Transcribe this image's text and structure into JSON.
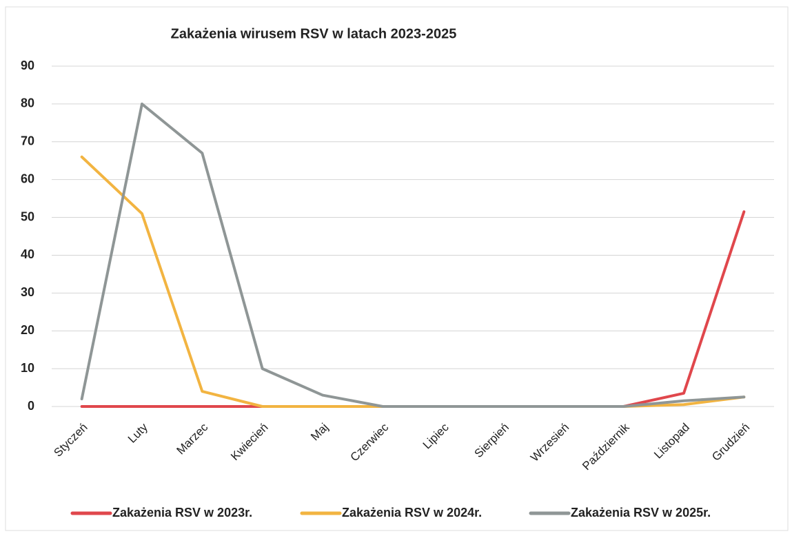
{
  "chart_data": {
    "type": "line",
    "title": "Zakażenia wirusem RSV w latach 2023-2025",
    "categories": [
      "Styczeń",
      "Luty",
      "Marzec",
      "Kwiecień",
      "Maj",
      "Czerwiec",
      "Lipiec",
      "Sierpień",
      "Wrzesień",
      "Październik",
      "Listopad",
      "Grudzień"
    ],
    "series": [
      {
        "name": "Zakażenia RSV w 2023r.",
        "color": "#e0474c",
        "values": [
          0,
          0,
          0,
          0,
          0,
          0,
          0,
          0,
          0,
          0,
          3.5,
          51.5
        ]
      },
      {
        "name": "Zakażenia RSV w 2024r.",
        "color": "#f2b441",
        "values": [
          66,
          51,
          4,
          0,
          0,
          0,
          0,
          0,
          0,
          0,
          0.5,
          2.5
        ]
      },
      {
        "name": "Zakażenia RSV w 2025r.",
        "color": "#8f9696",
        "values": [
          2,
          80,
          67,
          10,
          3,
          0,
          0,
          0,
          0,
          0,
          1.5,
          2.5
        ]
      }
    ],
    "ylim": [
      0,
      90
    ],
    "yticks": [
      0,
      10,
      20,
      30,
      40,
      50,
      60,
      70,
      80,
      90
    ],
    "grid": true
  }
}
